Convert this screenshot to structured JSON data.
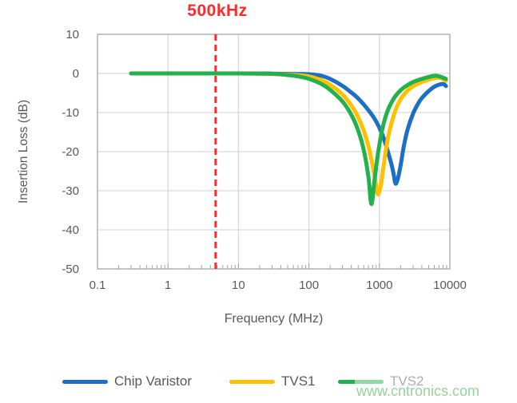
{
  "title": {
    "text": "500kHz"
  },
  "watermark": {
    "text": "www.cntronics.com",
    "color": "#93d59a"
  },
  "colors": {
    "grid": "#d9d9d9",
    "axis_border": "#a6a6a6",
    "tick": "#a6a6a6",
    "text": "#595959",
    "annotation_red": "#fa2b2b"
  },
  "chart_data": {
    "type": "line",
    "title": "500kHz",
    "xlabel": "Frequency (MHz)",
    "ylabel": "Insertion Loss (dB)",
    "x_scale": "log",
    "xlim": [
      0.1,
      10000
    ],
    "ylim": [
      -50,
      10
    ],
    "x_tick_labels": [
      "0.1",
      "1",
      "10",
      "100",
      "1000",
      "10000"
    ],
    "y_tick_labels": [
      "10",
      "0",
      "-10",
      "-20",
      "-30",
      "-40",
      "-50"
    ],
    "grid": true,
    "legend_position": "bottom",
    "annotation_line": {
      "label": "500kHz",
      "x_MHz_as_drawn": 4.75,
      "style": "dashed",
      "color": "#fa2b2b"
    },
    "series": [
      {
        "name": "Chip Varistor",
        "color": "#1b6fc4",
        "points": [
          [
            0.3,
            0
          ],
          [
            1,
            0
          ],
          [
            3,
            0
          ],
          [
            10,
            0
          ],
          [
            20,
            0
          ],
          [
            40,
            -0.1
          ],
          [
            70,
            -0.15
          ],
          [
            100,
            -0.2
          ],
          [
            150,
            -0.6
          ],
          [
            200,
            -1.4
          ],
          [
            300,
            -3.2
          ],
          [
            400,
            -4.9
          ],
          [
            500,
            -6.4
          ],
          [
            700,
            -9.4
          ],
          [
            900,
            -12.3
          ],
          [
            1100,
            -15.6
          ],
          [
            1300,
            -19.6
          ],
          [
            1500,
            -23.6
          ],
          [
            1600,
            -26
          ],
          [
            1700,
            -28.2
          ],
          [
            1850,
            -26.5
          ],
          [
            2000,
            -23.5
          ],
          [
            2200,
            -19
          ],
          [
            2500,
            -14.5
          ],
          [
            3000,
            -10.3
          ],
          [
            3500,
            -7.9
          ],
          [
            4000,
            -6.3
          ],
          [
            5000,
            -4.5
          ],
          [
            6000,
            -3.4
          ],
          [
            7000,
            -2.9
          ],
          [
            8000,
            -2.7
          ],
          [
            8800,
            -3.2
          ]
        ]
      },
      {
        "name": "TVS1",
        "color": "#ffc000",
        "points": [
          [
            0.3,
            0
          ],
          [
            1,
            0
          ],
          [
            3,
            0
          ],
          [
            10,
            0
          ],
          [
            20,
            -0.05
          ],
          [
            40,
            -0.2
          ],
          [
            70,
            -0.45
          ],
          [
            100,
            -0.75
          ],
          [
            150,
            -1.7
          ],
          [
            200,
            -2.9
          ],
          [
            300,
            -5.4
          ],
          [
            400,
            -8.2
          ],
          [
            500,
            -11.2
          ],
          [
            600,
            -14.6
          ],
          [
            700,
            -18.6
          ],
          [
            800,
            -23.5
          ],
          [
            880,
            -27.5
          ],
          [
            950,
            -30.9
          ],
          [
            1050,
            -28.5
          ],
          [
            1150,
            -23.5
          ],
          [
            1300,
            -17.2
          ],
          [
            1500,
            -12.4
          ],
          [
            1700,
            -9.3
          ],
          [
            2000,
            -6.6
          ],
          [
            2500,
            -4.4
          ],
          [
            3000,
            -3.3
          ],
          [
            4000,
            -2.2
          ],
          [
            5000,
            -1.6
          ],
          [
            6000,
            -1.2
          ],
          [
            7000,
            -1.1
          ],
          [
            8000,
            -1.4
          ],
          [
            8800,
            -1.9
          ]
        ]
      },
      {
        "name": "TVS2",
        "color": "#22b14c",
        "points": [
          [
            0.3,
            0
          ],
          [
            1,
            0
          ],
          [
            3,
            0
          ],
          [
            10,
            0
          ],
          [
            20,
            -0.05
          ],
          [
            30,
            -0.1
          ],
          [
            50,
            -0.4
          ],
          [
            70,
            -0.75
          ],
          [
            100,
            -1.4
          ],
          [
            150,
            -2.7
          ],
          [
            200,
            -4.2
          ],
          [
            300,
            -7.2
          ],
          [
            400,
            -10.6
          ],
          [
            500,
            -14.6
          ],
          [
            600,
            -19.6
          ],
          [
            700,
            -26.5
          ],
          [
            770,
            -33.4
          ],
          [
            850,
            -27.5
          ],
          [
            950,
            -20.8
          ],
          [
            1100,
            -14.2
          ],
          [
            1300,
            -9.7
          ],
          [
            1600,
            -6.4
          ],
          [
            2000,
            -4.3
          ],
          [
            2500,
            -3
          ],
          [
            3000,
            -2.2
          ],
          [
            4000,
            -1.4
          ],
          [
            5000,
            -0.9
          ],
          [
            6300,
            -0.6
          ],
          [
            7500,
            -0.9
          ],
          [
            8800,
            -1.4
          ]
        ]
      }
    ]
  }
}
